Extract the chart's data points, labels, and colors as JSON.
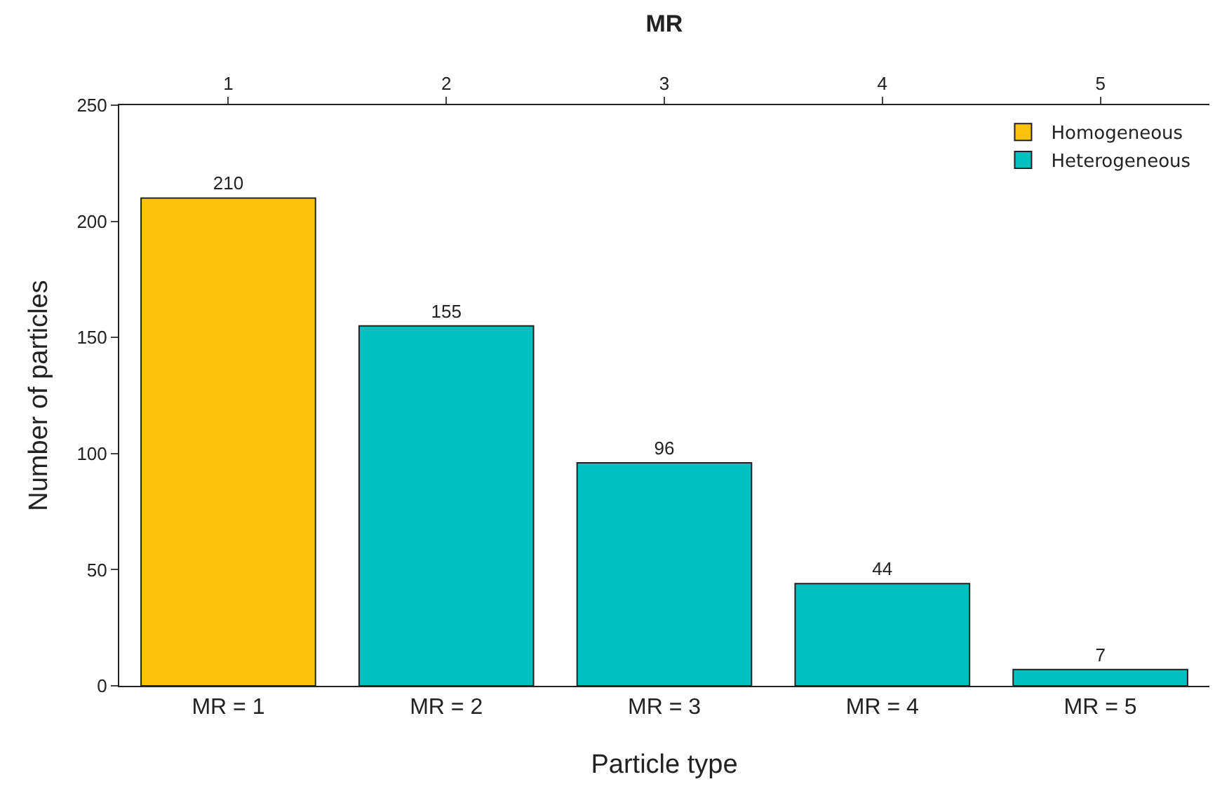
{
  "chart_data": {
    "type": "bar",
    "x2label": "MR",
    "xlabel": "Particle type",
    "ylabel": "Number of particles",
    "categories": [
      "MR = 1",
      "MR = 2",
      "MR = 3",
      "MR = 4",
      "MR = 5"
    ],
    "series": [
      {
        "name": "Homogeneous",
        "color": "#fdc30a",
        "values": [
          210,
          null,
          null,
          null,
          null
        ]
      },
      {
        "name": "Heterogeneous",
        "color": "#00bfbf",
        "values": [
          null,
          155,
          96,
          44,
          7
        ]
      }
    ],
    "ylim": [
      0,
      250
    ],
    "yticks": [
      0,
      50,
      100,
      150,
      200,
      250
    ],
    "x2lim": [
      0.5,
      5.5
    ],
    "x2ticks": [
      1,
      2,
      3,
      4,
      5
    ],
    "data_labels": true,
    "grid": false,
    "legend": "top right"
  }
}
